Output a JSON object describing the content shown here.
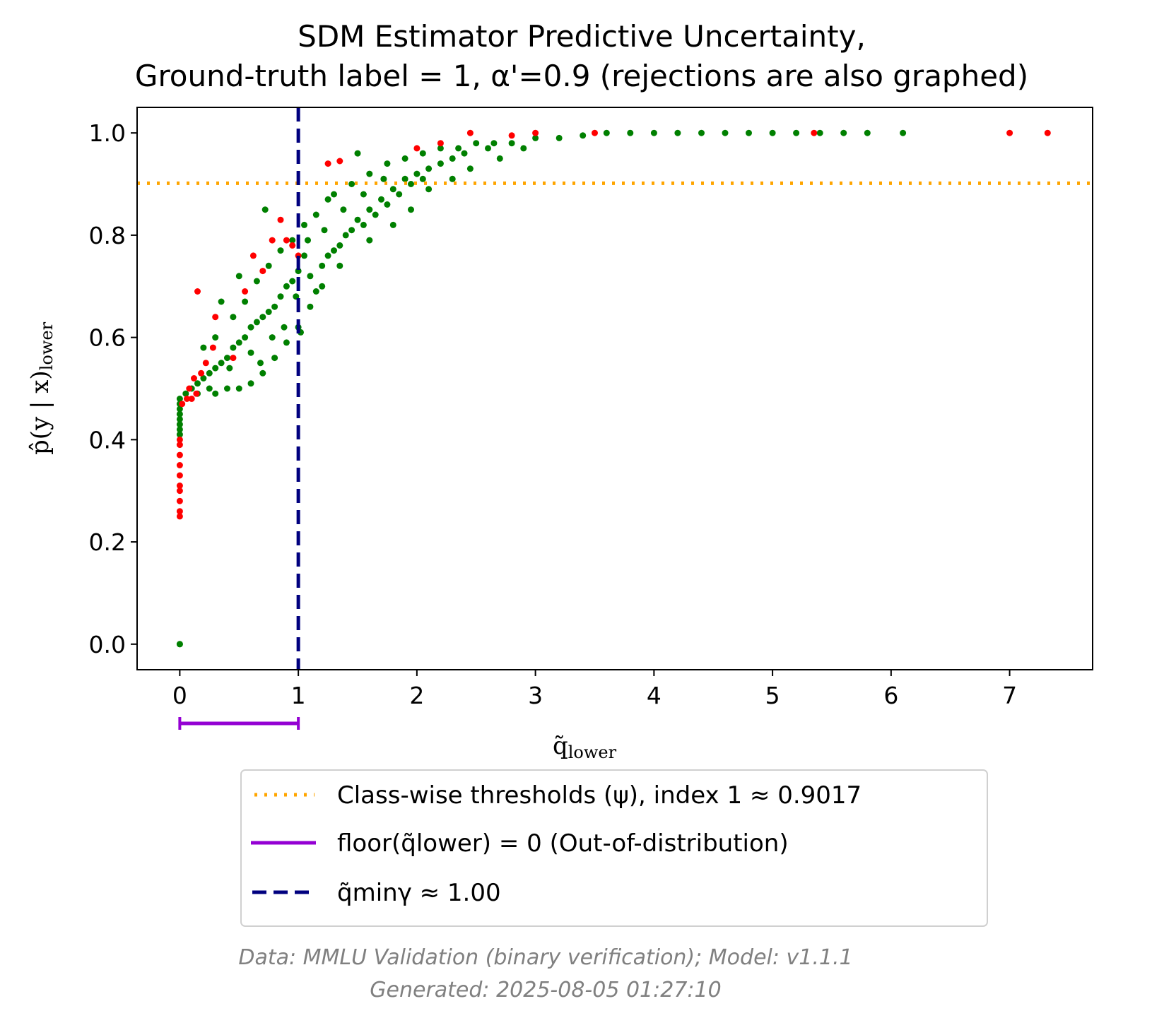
{
  "chart_data": {
    "type": "scatter",
    "title": [
      "SDM Estimator Predictive Uncertainty,",
      "Ground-truth label = 1, α'=0.9 (rejections are also graphed)"
    ],
    "xlabel": "q̃",
    "xlabel_sub": "lower",
    "ylabel": "p̂(y | x)",
    "ylabel_sub": "lower",
    "xlim": [
      -0.36,
      7.7
    ],
    "ylim": [
      -0.05,
      1.05
    ],
    "xticks": [
      0,
      1,
      2,
      3,
      4,
      5,
      6,
      7
    ],
    "yticks": [
      0.0,
      0.2,
      0.4,
      0.6,
      0.8,
      1.0
    ],
    "x_tick_labels": [
      "0",
      "1",
      "2",
      "3",
      "4",
      "5",
      "6",
      "7"
    ],
    "y_tick_labels": [
      "0.0",
      "0.2",
      "0.4",
      "0.6",
      "0.8",
      "1.0"
    ],
    "grid": false,
    "colors": {
      "accepted": "#008000",
      "rejected": "#ff0000",
      "threshold": "#ffa500",
      "ood": "#9400d3",
      "qmin": "#00007f"
    },
    "threshold_y": 0.9017,
    "qmin_x": 1.0,
    "ood_range": [
      0,
      1
    ],
    "series": [
      {
        "color": "green",
        "points": [
          [
            0,
            0.0
          ],
          [
            0,
            0.0
          ],
          [
            0,
            0.43
          ],
          [
            0,
            0.44
          ],
          [
            0,
            0.45
          ],
          [
            0,
            0.46
          ],
          [
            0,
            0.47
          ],
          [
            0,
            0.48
          ],
          [
            0,
            0.42
          ],
          [
            0,
            0.41
          ],
          [
            0.05,
            0.49
          ],
          [
            0.1,
            0.5
          ],
          [
            0.15,
            0.51
          ],
          [
            0.2,
            0.52
          ],
          [
            0.25,
            0.53
          ],
          [
            0.3,
            0.54
          ],
          [
            0.35,
            0.55
          ],
          [
            0.4,
            0.56
          ],
          [
            0.45,
            0.58
          ],
          [
            0.5,
            0.59
          ],
          [
            0.55,
            0.6
          ],
          [
            0.6,
            0.62
          ],
          [
            0.65,
            0.63
          ],
          [
            0.7,
            0.64
          ],
          [
            0.75,
            0.65
          ],
          [
            0.8,
            0.66
          ],
          [
            0.85,
            0.68
          ],
          [
            0.9,
            0.7
          ],
          [
            0.95,
            0.71
          ],
          [
            1.0,
            0.73
          ],
          [
            0.3,
            0.49
          ],
          [
            0.4,
            0.5
          ],
          [
            0.5,
            0.5
          ],
          [
            0.6,
            0.51
          ],
          [
            0.7,
            0.53
          ],
          [
            0.8,
            0.56
          ],
          [
            0.9,
            0.59
          ],
          [
            1.0,
            0.62
          ],
          [
            1.1,
            0.66
          ],
          [
            1.2,
            0.7
          ],
          [
            0.2,
            0.58
          ],
          [
            0.3,
            0.6
          ],
          [
            0.45,
            0.64
          ],
          [
            0.55,
            0.67
          ],
          [
            0.65,
            0.71
          ],
          [
            0.75,
            0.74
          ],
          [
            0.85,
            0.77
          ],
          [
            0.95,
            0.79
          ],
          [
            1.05,
            0.82
          ],
          [
            1.15,
            0.84
          ],
          [
            1.2,
            0.74
          ],
          [
            1.3,
            0.77
          ],
          [
            1.4,
            0.8
          ],
          [
            1.5,
            0.83
          ],
          [
            1.6,
            0.85
          ],
          [
            1.7,
            0.87
          ],
          [
            1.8,
            0.89
          ],
          [
            1.9,
            0.91
          ],
          [
            2.0,
            0.92
          ],
          [
            2.1,
            0.93
          ],
          [
            1.1,
            0.72
          ],
          [
            1.25,
            0.76
          ],
          [
            1.35,
            0.78
          ],
          [
            1.45,
            0.81
          ],
          [
            1.55,
            0.82
          ],
          [
            1.65,
            0.84
          ],
          [
            1.75,
            0.86
          ],
          [
            1.85,
            0.88
          ],
          [
            1.95,
            0.9
          ],
          [
            2.05,
            0.91
          ],
          [
            1.3,
            0.88
          ],
          [
            1.45,
            0.9
          ],
          [
            1.6,
            0.92
          ],
          [
            1.75,
            0.94
          ],
          [
            1.9,
            0.95
          ],
          [
            2.05,
            0.96
          ],
          [
            2.2,
            0.97
          ],
          [
            2.35,
            0.97
          ],
          [
            2.5,
            0.98
          ],
          [
            2.65,
            0.98
          ],
          [
            2.2,
            0.94
          ],
          [
            2.3,
            0.95
          ],
          [
            2.4,
            0.96
          ],
          [
            2.6,
            0.97
          ],
          [
            2.8,
            0.98
          ],
          [
            3.0,
            0.99
          ],
          [
            3.2,
            0.99
          ],
          [
            3.4,
            0.995
          ],
          [
            3.6,
            1.0
          ],
          [
            3.8,
            1.0
          ],
          [
            4.0,
            1.0
          ],
          [
            4.2,
            1.0
          ],
          [
            4.4,
            1.0
          ],
          [
            4.6,
            1.0
          ],
          [
            4.8,
            1.0
          ],
          [
            5.0,
            1.0
          ],
          [
            5.2,
            1.0
          ],
          [
            5.4,
            1.0
          ],
          [
            5.6,
            1.0
          ],
          [
            5.8,
            1.0
          ],
          [
            6.1,
            1.0
          ],
          [
            1.5,
            0.96
          ],
          [
            1.25,
            0.87
          ],
          [
            0.72,
            0.85
          ],
          [
            0.5,
            0.72
          ],
          [
            0.35,
            0.67
          ],
          [
            1.02,
            0.61
          ],
          [
            0.98,
            0.68
          ],
          [
            1.15,
            0.69
          ],
          [
            1.35,
            0.74
          ],
          [
            1.6,
            0.79
          ],
          [
            1.8,
            0.82
          ],
          [
            1.95,
            0.85
          ],
          [
            2.1,
            0.89
          ],
          [
            2.3,
            0.91
          ],
          [
            2.45,
            0.93
          ],
          [
            2.7,
            0.95
          ],
          [
            2.9,
            0.97
          ],
          [
            1.05,
            0.76
          ],
          [
            0.88,
            0.62
          ],
          [
            0.6,
            0.57
          ],
          [
            0.42,
            0.54
          ],
          [
            0.25,
            0.5
          ],
          [
            0.15,
            0.49
          ],
          [
            0.68,
            0.55
          ],
          [
            0.78,
            0.6
          ],
          [
            1.08,
            0.79
          ],
          [
            1.22,
            0.81
          ],
          [
            1.38,
            0.85
          ],
          [
            1.55,
            0.88
          ],
          [
            1.72,
            0.91
          ]
        ]
      },
      {
        "color": "red",
        "points": [
          [
            0,
            0.25
          ],
          [
            0,
            0.26
          ],
          [
            0,
            0.28
          ],
          [
            0,
            0.3
          ],
          [
            0,
            0.31
          ],
          [
            0,
            0.33
          ],
          [
            0,
            0.35
          ],
          [
            0,
            0.37
          ],
          [
            0,
            0.39
          ],
          [
            0,
            0.4
          ],
          [
            0.02,
            0.47
          ],
          [
            0.06,
            0.48
          ],
          [
            0.1,
            0.48
          ],
          [
            0.14,
            0.49
          ],
          [
            0.08,
            0.5
          ],
          [
            0.12,
            0.52
          ],
          [
            0.18,
            0.53
          ],
          [
            0.22,
            0.55
          ],
          [
            0.28,
            0.58
          ],
          [
            0.3,
            0.64
          ],
          [
            0.15,
            0.69
          ],
          [
            0.55,
            0.69
          ],
          [
            0.62,
            0.76
          ],
          [
            0.7,
            0.73
          ],
          [
            0.78,
            0.79
          ],
          [
            0.85,
            0.83
          ],
          [
            0.9,
            0.79
          ],
          [
            0.95,
            0.78
          ],
          [
            1.0,
            0.76
          ],
          [
            0.45,
            0.56
          ],
          [
            1.25,
            0.94
          ],
          [
            1.35,
            0.945
          ],
          [
            2.0,
            0.97
          ],
          [
            2.2,
            0.98
          ],
          [
            2.45,
            1.0
          ],
          [
            2.8,
            0.995
          ],
          [
            3.0,
            1.0
          ],
          [
            3.5,
            1.0
          ],
          [
            5.35,
            1.0
          ],
          [
            7.0,
            1.0
          ],
          [
            7.32,
            1.0
          ]
        ]
      }
    ],
    "legend": [
      {
        "label": "Class-wise thresholds (ψ), index 1 ≈ 0.9017",
        "style": "dotted",
        "color": "#ffa500"
      },
      {
        "label": "floor(q̃lower) = 0 (Out-of-distribution)",
        "style": "solid",
        "color": "#9400d3"
      },
      {
        "label": "q̃minγ ≈ 1.00",
        "style": "dashed",
        "color": "#00007f"
      }
    ],
    "legend_placement": "below",
    "footer": [
      "Data: MMLU Validation (binary verification); Model: v1.1.1",
      "Generated: 2025-08-05 01:27:10"
    ]
  }
}
